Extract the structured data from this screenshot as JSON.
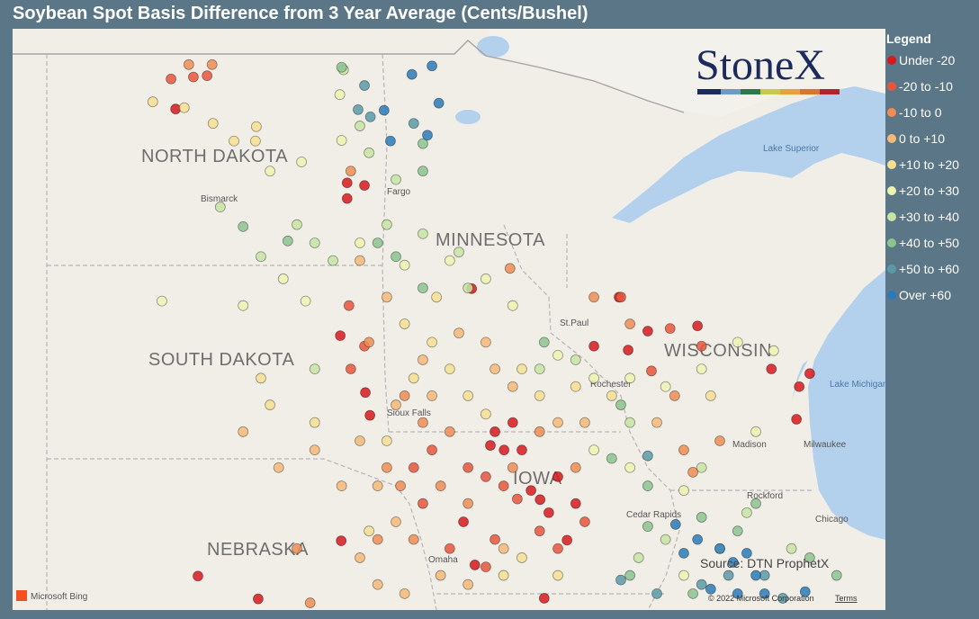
{
  "title": "Soybean Spot Basis Difference from 3 Year Average (Cents/Bushel)",
  "legend": {
    "title": "Legend",
    "items": [
      {
        "label": "Under -20",
        "color": "#d7191c",
        "points": [
          [
            -101.29,
            48.24
          ],
          [
            -97.53,
            47.11
          ],
          [
            -97.53,
            46.87
          ],
          [
            -97.15,
            47.07
          ],
          [
            -94.8,
            45.49
          ],
          [
            -97.68,
            44.77
          ],
          [
            -97.13,
            43.9
          ],
          [
            -97.03,
            43.55
          ],
          [
            -94.29,
            43.3
          ],
          [
            -94.09,
            43.02
          ],
          [
            -94.39,
            43.09
          ],
          [
            -93.3,
            42.26
          ],
          [
            -93.11,
            42.06
          ],
          [
            -93.5,
            42.4
          ],
          [
            -92.91,
            42.61
          ],
          [
            -92.52,
            42.2
          ],
          [
            -94.98,
            41.92
          ],
          [
            -92.71,
            41.64
          ],
          [
            -97.66,
            41.63
          ],
          [
            -100.8,
            41.09
          ],
          [
            -99.48,
            40.74
          ],
          [
            -91.37,
            44.55
          ],
          [
            -90.94,
            44.84
          ],
          [
            -89.85,
            44.92
          ],
          [
            -88.23,
            44.26
          ],
          [
            -87.62,
            43.99
          ],
          [
            -87.68,
            43.49
          ],
          [
            -87.39,
            44.19
          ],
          [
            -93.21,
            40.75
          ],
          [
            -92.12,
            44.61
          ],
          [
            -91.57,
            45.36
          ],
          [
            -94.73,
            41.26
          ],
          [
            -93.9,
            43.44
          ],
          [
            -93.7,
            43.02
          ]
        ]
      },
      {
        "label": "-20 to -10",
        "color": "#e7563c",
        "points": [
          [
            -100.9,
            48.73
          ],
          [
            -100.6,
            48.75
          ],
          [
            -101.39,
            48.7
          ],
          [
            -97.15,
            44.61
          ],
          [
            -97.45,
            44.26
          ],
          [
            -96.07,
            42.75
          ],
          [
            -95.67,
            43.02
          ],
          [
            -94.88,
            42.75
          ],
          [
            -94.49,
            42.61
          ],
          [
            -94.1,
            42.47
          ],
          [
            -93.8,
            42.27
          ],
          [
            -95.28,
            41.51
          ],
          [
            -94.49,
            41.23
          ],
          [
            -92.91,
            41.51
          ],
          [
            -94.29,
            41.65
          ],
          [
            -91.53,
            45.36
          ],
          [
            -90.45,
            44.88
          ],
          [
            -89.76,
            44.61
          ],
          [
            -90.86,
            44.23
          ],
          [
            -97.49,
            45.23
          ],
          [
            -95.87,
            42.2
          ],
          [
            -92.32,
            41.92
          ],
          [
            -93.31,
            41.78
          ]
        ]
      },
      {
        "label": "-10 to 0",
        "color": "#f08c54",
        "points": [
          [
            -100.49,
            48.92
          ],
          [
            -101.0,
            48.92
          ],
          [
            -97.45,
            47.29
          ],
          [
            -97.05,
            44.67
          ],
          [
            -96.27,
            43.85
          ],
          [
            -95.87,
            43.44
          ],
          [
            -95.28,
            43.3
          ],
          [
            -96.66,
            42.75
          ],
          [
            -96.36,
            42.47
          ],
          [
            -95.48,
            42.47
          ],
          [
            -94.88,
            42.2
          ],
          [
            -96.07,
            41.65
          ],
          [
            -93.9,
            42.75
          ],
          [
            -93.31,
            43.3
          ],
          [
            -92.52,
            42.75
          ],
          [
            -92.12,
            45.36
          ],
          [
            -91.33,
            44.95
          ],
          [
            -90.35,
            43.85
          ],
          [
            -89.95,
            42.68
          ],
          [
            -89.36,
            43.16
          ],
          [
            -93.96,
            45.8
          ],
          [
            -96.86,
            41.65
          ],
          [
            -98.63,
            41.51
          ],
          [
            -98.34,
            40.68
          ],
          [
            -90.15,
            43.02
          ]
        ]
      },
      {
        "label": "0 to +10",
        "color": "#f6b978",
        "points": [
          [
            -97.25,
            45.92
          ],
          [
            -96.66,
            45.36
          ],
          [
            -95.87,
            44.4
          ],
          [
            -96.46,
            43.71
          ],
          [
            -95.67,
            43.85
          ],
          [
            -97.25,
            43.16
          ],
          [
            -96.86,
            42.47
          ],
          [
            -96.46,
            41.92
          ],
          [
            -97.25,
            41.37
          ],
          [
            -96.86,
            40.96
          ],
          [
            -96.27,
            40.82
          ],
          [
            -95.48,
            41.1
          ],
          [
            -94.88,
            40.96
          ],
          [
            -94.1,
            41.51
          ],
          [
            -97.65,
            42.47
          ],
          [
            -98.24,
            43.02
          ],
          [
            -99.03,
            42.75
          ],
          [
            -99.81,
            43.3
          ],
          [
            -93.9,
            43.99
          ],
          [
            -94.29,
            44.26
          ],
          [
            -92.91,
            43.44
          ],
          [
            -92.32,
            43.44
          ],
          [
            -90.74,
            43.44
          ],
          [
            -94.49,
            44.67
          ],
          [
            -95.08,
            44.81
          ]
        ]
      },
      {
        "label": "+10 to +20",
        "color": "#f7df92",
        "points": [
          [
            -101.79,
            48.35
          ],
          [
            -101.1,
            48.26
          ],
          [
            -100.47,
            48.02
          ],
          [
            -99.52,
            47.97
          ],
          [
            -99.54,
            47.75
          ],
          [
            -100.01,
            47.75
          ],
          [
            -96.27,
            44.95
          ],
          [
            -95.67,
            44.67
          ],
          [
            -95.28,
            44.26
          ],
          [
            -96.07,
            44.12
          ],
          [
            -94.88,
            43.85
          ],
          [
            -94.49,
            43.57
          ],
          [
            -93.31,
            43.85
          ],
          [
            -93.7,
            44.26
          ],
          [
            -96.66,
            43.16
          ],
          [
            -98.24,
            43.44
          ],
          [
            -99.22,
            43.71
          ],
          [
            -99.42,
            44.12
          ],
          [
            -92.52,
            43.99
          ],
          [
            -91.73,
            43.85
          ],
          [
            -89.56,
            43.85
          ],
          [
            -94.1,
            41.1
          ],
          [
            -93.7,
            41.37
          ],
          [
            -92.91,
            41.1
          ],
          [
            -95.57,
            45.36
          ],
          [
            -97.05,
            41.78
          ]
        ]
      },
      {
        "label": "+20 to +30",
        "color": "#eef3b0",
        "points": [
          [
            -97.69,
            48.46
          ],
          [
            -97.65,
            47.76
          ],
          [
            -99.22,
            47.29
          ],
          [
            -98.53,
            47.43
          ],
          [
            -101.59,
            45.3
          ],
          [
            -99.81,
            45.23
          ],
          [
            -98.93,
            45.64
          ],
          [
            -98.44,
            45.3
          ],
          [
            -97.25,
            46.19
          ],
          [
            -96.27,
            45.85
          ],
          [
            -95.28,
            45.92
          ],
          [
            -94.49,
            45.64
          ],
          [
            -93.9,
            45.23
          ],
          [
            -92.91,
            44.47
          ],
          [
            -92.12,
            44.12
          ],
          [
            -91.33,
            44.12
          ],
          [
            -90.55,
            43.99
          ],
          [
            -89.76,
            44.26
          ],
          [
            -88.97,
            44.67
          ],
          [
            -88.18,
            44.54
          ],
          [
            -92.12,
            43.02
          ],
          [
            -91.33,
            42.75
          ],
          [
            -90.15,
            42.4
          ],
          [
            -88.57,
            43.3
          ],
          [
            -89.36,
            41.51
          ],
          [
            -90.15,
            41.1
          ]
        ]
      },
      {
        "label": "+30 to +40",
        "color": "#c7e4a2",
        "points": [
          [
            -97.61,
            48.84
          ],
          [
            -97.25,
            47.98
          ],
          [
            -97.05,
            47.57
          ],
          [
            -96.46,
            47.16
          ],
          [
            -96.66,
            46.47
          ],
          [
            -98.63,
            46.47
          ],
          [
            -98.24,
            46.19
          ],
          [
            -99.42,
            45.98
          ],
          [
            -100.31,
            46.74
          ],
          [
            -97.84,
            45.92
          ],
          [
            -95.87,
            46.33
          ],
          [
            -95.08,
            46.05
          ],
          [
            -94.88,
            45.5
          ],
          [
            -98.24,
            44.26
          ],
          [
            -93.31,
            44.26
          ],
          [
            -92.52,
            44.4
          ],
          [
            -91.33,
            43.44
          ],
          [
            -89.76,
            42.75
          ],
          [
            -90.55,
            41.65
          ],
          [
            -91.14,
            41.37
          ],
          [
            -88.77,
            42.06
          ],
          [
            -87.79,
            41.51
          ]
        ]
      },
      {
        "label": "+40 to +50",
        "color": "#8cc38e",
        "points": [
          [
            -97.65,
            48.88
          ],
          [
            -95.87,
            47.29
          ],
          [
            -95.87,
            47.71
          ],
          [
            -96.86,
            46.19
          ],
          [
            -96.46,
            45.98
          ],
          [
            -95.87,
            45.5
          ],
          [
            -99.81,
            46.44
          ],
          [
            -98.83,
            46.22
          ],
          [
            -93.21,
            44.67
          ],
          [
            -91.53,
            43.71
          ],
          [
            -91.73,
            42.89
          ],
          [
            -90.94,
            42.47
          ],
          [
            -90.94,
            41.85
          ],
          [
            -89.76,
            41.99
          ],
          [
            -88.97,
            41.78
          ],
          [
            -88.57,
            42.2
          ],
          [
            -91.33,
            41.1
          ],
          [
            -89.95,
            40.82
          ],
          [
            -87.39,
            41.37
          ],
          [
            -86.8,
            41.1
          ]
        ]
      },
      {
        "label": "+50 to +60",
        "color": "#5a9aa8",
        "points": [
          [
            -97.15,
            48.6
          ],
          [
            -97.29,
            48.23
          ],
          [
            -97.02,
            48.12
          ],
          [
            -96.07,
            48.02
          ],
          [
            -90.94,
            42.93
          ],
          [
            -90.74,
            40.82
          ],
          [
            -91.53,
            41.03
          ],
          [
            -89.17,
            41.1
          ],
          [
            -89.76,
            40.96
          ],
          [
            -88.38,
            41.1
          ],
          [
            -87.98,
            40.75
          ]
        ]
      },
      {
        "label": "Over +60",
        "color": "#2a7ab9",
        "points": [
          [
            -96.11,
            48.77
          ],
          [
            -95.67,
            48.9
          ],
          [
            -95.52,
            48.33
          ],
          [
            -96.72,
            48.22
          ],
          [
            -95.77,
            47.84
          ],
          [
            -96.58,
            47.75
          ],
          [
            -90.15,
            41.44
          ],
          [
            -89.85,
            41.65
          ],
          [
            -89.36,
            41.51
          ],
          [
            -89.07,
            41.3
          ],
          [
            -88.77,
            41.44
          ],
          [
            -88.57,
            41.1
          ],
          [
            -88.97,
            40.82
          ],
          [
            -89.56,
            40.89
          ],
          [
            -88.38,
            40.82
          ],
          [
            -87.49,
            40.85
          ],
          [
            -90.33,
            41.88
          ]
        ]
      }
    ]
  },
  "map_labels": {
    "states": [
      "NORTH DAKOTA",
      "MINNESOTA",
      "SOUTH DAKOTA",
      "WISCONSIN",
      "IOWA",
      "NEBRASKA"
    ],
    "cities": [
      "Bismarck",
      "Fargo",
      "St.Paul",
      "Rochester",
      "Madison",
      "Milwaukee",
      "Rockford",
      "Chicago",
      "Cedar Rapids",
      "Omaha",
      "Sioux Falls"
    ],
    "water": [
      "Lake Superior",
      "Lake Michigan"
    ]
  },
  "logo": "StoneX",
  "source": "Source: DTN ProphetX",
  "attribution": {
    "provider": "Microsoft Bing",
    "copyright": "© 2022 Microsoft Corporation",
    "terms": "Terms"
  }
}
